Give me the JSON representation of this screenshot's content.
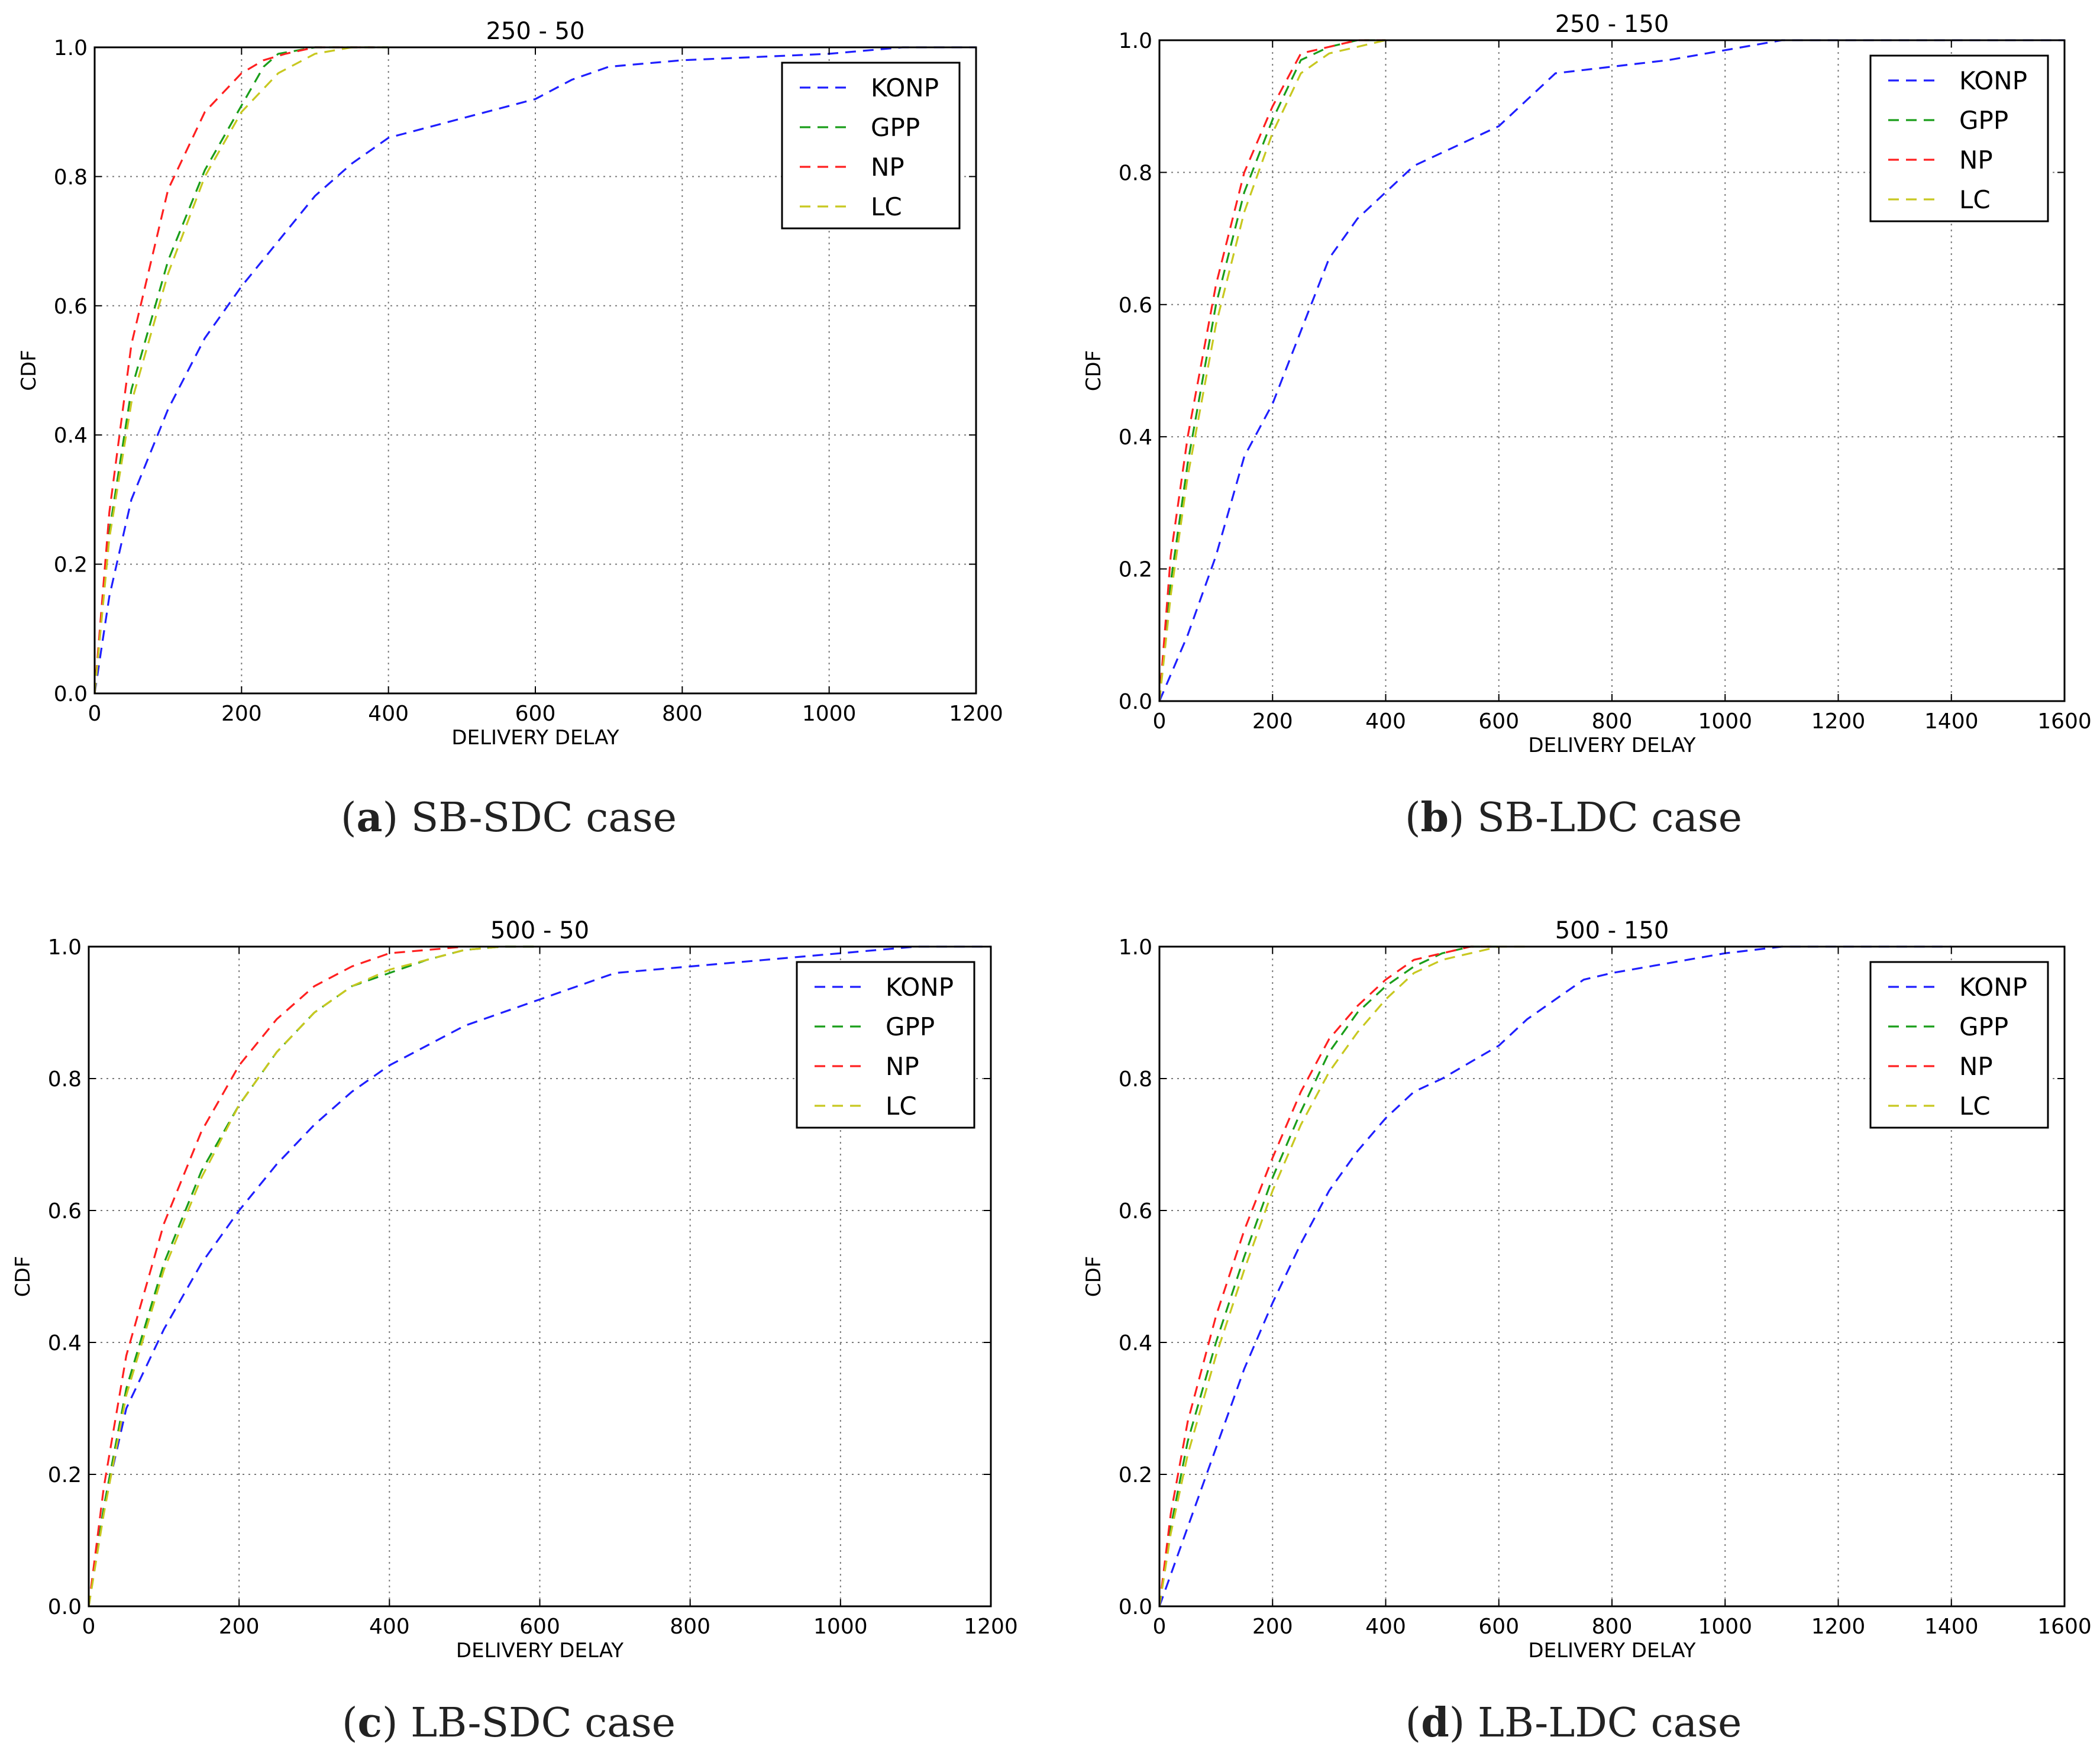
{
  "chart_data": [
    {
      "type": "line",
      "panel_label": "a",
      "caption": "SB-SDC case",
      "title": "250 - 50",
      "xlabel": "DELIVERY DELAY",
      "ylabel": "CDF",
      "xlim": [
        0,
        1200
      ],
      "ylim": [
        0,
        1.0
      ],
      "xticks": [
        0,
        200,
        400,
        600,
        800,
        1000,
        1200
      ],
      "yticks": [
        0.0,
        0.2,
        0.4,
        0.6,
        0.8,
        1.0
      ],
      "xtick_labels": [
        "0",
        "200",
        "400",
        "600",
        "800",
        "1000",
        "1200"
      ],
      "ytick_labels": [
        "0.0",
        "0.2",
        "0.4",
        "0.6",
        "0.8",
        "1.0"
      ],
      "grid": true,
      "legend_position": "top-right",
      "series": [
        {
          "name": "KONP",
          "color": "#1f1fff",
          "x": [
            0,
            20,
            50,
            100,
            150,
            200,
            250,
            300,
            350,
            400,
            500,
            600,
            650,
            700,
            800,
            900,
            1000,
            1100,
            1200
          ],
          "y": [
            0.0,
            0.15,
            0.3,
            0.44,
            0.55,
            0.63,
            0.7,
            0.77,
            0.82,
            0.86,
            0.89,
            0.92,
            0.95,
            0.97,
            0.98,
            0.985,
            0.99,
            1.0,
            1.0
          ]
        },
        {
          "name": "GPP",
          "color": "#1a9e1a",
          "x": [
            0,
            20,
            50,
            100,
            150,
            200,
            230,
            250,
            300,
            400
          ],
          "y": [
            0.0,
            0.25,
            0.47,
            0.67,
            0.81,
            0.91,
            0.97,
            0.99,
            1.0,
            1.0
          ]
        },
        {
          "name": "NP",
          "color": "#ff2020",
          "x": [
            0,
            20,
            50,
            100,
            150,
            200,
            230,
            260,
            300,
            380
          ],
          "y": [
            0.0,
            0.28,
            0.54,
            0.78,
            0.9,
            0.96,
            0.98,
            0.99,
            1.0,
            1.0
          ]
        },
        {
          "name": "LC",
          "color": "#c8c820",
          "x": [
            0,
            20,
            50,
            100,
            150,
            200,
            250,
            300,
            350,
            400
          ],
          "y": [
            0.0,
            0.24,
            0.45,
            0.65,
            0.8,
            0.9,
            0.96,
            0.99,
            1.0,
            1.0
          ]
        }
      ]
    },
    {
      "type": "line",
      "panel_label": "b",
      "caption": "SB-LDC case",
      "title": "250 - 150",
      "xlabel": "DELIVERY DELAY",
      "ylabel": "CDF",
      "xlim": [
        0,
        1600
      ],
      "ylim": [
        0,
        1.0
      ],
      "xticks": [
        0,
        200,
        400,
        600,
        800,
        1000,
        1200,
        1400,
        1600
      ],
      "yticks": [
        0.0,
        0.2,
        0.4,
        0.6,
        0.8,
        1.0
      ],
      "xtick_labels": [
        "0",
        "200",
        "400",
        "600",
        "800",
        "1000",
        "1200",
        "1400",
        "1600"
      ],
      "ytick_labels": [
        "0.0",
        "0.2",
        "0.4",
        "0.6",
        "0.8",
        "1.0"
      ],
      "grid": true,
      "legend_position": "top-right",
      "series": [
        {
          "name": "KONP",
          "color": "#1f1fff",
          "x": [
            0,
            50,
            100,
            150,
            200,
            250,
            300,
            350,
            400,
            450,
            500,
            600,
            650,
            700,
            750,
            800,
            900,
            1000,
            1100,
            1200,
            1600
          ],
          "y": [
            0.0,
            0.1,
            0.22,
            0.37,
            0.45,
            0.56,
            0.67,
            0.73,
            0.77,
            0.81,
            0.83,
            0.87,
            0.91,
            0.95,
            0.955,
            0.96,
            0.97,
            0.985,
            1.0,
            1.0,
            1.0
          ]
        },
        {
          "name": "GPP",
          "color": "#1a9e1a",
          "x": [
            0,
            20,
            50,
            100,
            150,
            200,
            250,
            300,
            350,
            400
          ],
          "y": [
            0.0,
            0.18,
            0.36,
            0.6,
            0.77,
            0.88,
            0.97,
            0.99,
            1.0,
            1.0
          ]
        },
        {
          "name": "NP",
          "color": "#ff2020",
          "x": [
            0,
            20,
            50,
            100,
            150,
            200,
            250,
            300,
            350,
            400
          ],
          "y": [
            0.0,
            0.22,
            0.4,
            0.63,
            0.8,
            0.9,
            0.98,
            0.99,
            1.0,
            1.0
          ]
        },
        {
          "name": "LC",
          "color": "#c8c820",
          "x": [
            0,
            20,
            50,
            100,
            150,
            200,
            250,
            300,
            350,
            400
          ],
          "y": [
            0.0,
            0.16,
            0.34,
            0.57,
            0.74,
            0.86,
            0.95,
            0.98,
            0.99,
            1.0
          ]
        }
      ]
    },
    {
      "type": "line",
      "panel_label": "c",
      "caption": "LB-SDC case",
      "title": "500 - 50",
      "xlabel": "DELIVERY DELAY",
      "ylabel": "CDF",
      "xlim": [
        0,
        1200
      ],
      "ylim": [
        0,
        1.0
      ],
      "xticks": [
        0,
        200,
        400,
        600,
        800,
        1000,
        1200
      ],
      "yticks": [
        0.0,
        0.2,
        0.4,
        0.6,
        0.8,
        1.0
      ],
      "xtick_labels": [
        "0",
        "200",
        "400",
        "600",
        "800",
        "1000",
        "1200"
      ],
      "ytick_labels": [
        "0.0",
        "0.2",
        "0.4",
        "0.6",
        "0.8",
        "1.0"
      ],
      "grid": true,
      "legend_position": "top-right",
      "series": [
        {
          "name": "KONP",
          "color": "#1f1fff",
          "x": [
            0,
            20,
            50,
            100,
            150,
            200,
            250,
            300,
            350,
            400,
            500,
            600,
            700,
            800,
            900,
            1000,
            1100,
            1200
          ],
          "y": [
            0.0,
            0.15,
            0.3,
            0.42,
            0.52,
            0.6,
            0.67,
            0.73,
            0.78,
            0.82,
            0.88,
            0.92,
            0.96,
            0.97,
            0.98,
            0.99,
            1.0,
            1.0
          ]
        },
        {
          "name": "GPP",
          "color": "#1a9e1a",
          "x": [
            0,
            20,
            50,
            100,
            150,
            200,
            250,
            300,
            350,
            400,
            450,
            500,
            550,
            600
          ],
          "y": [
            0.0,
            0.15,
            0.33,
            0.52,
            0.66,
            0.76,
            0.84,
            0.9,
            0.94,
            0.96,
            0.98,
            0.995,
            1.0,
            1.0
          ]
        },
        {
          "name": "NP",
          "color": "#ff2020",
          "x": [
            0,
            20,
            50,
            100,
            150,
            200,
            250,
            300,
            350,
            400,
            450,
            500
          ],
          "y": [
            0.0,
            0.18,
            0.38,
            0.58,
            0.72,
            0.82,
            0.89,
            0.94,
            0.97,
            0.99,
            0.995,
            1.0
          ]
        },
        {
          "name": "LC",
          "color": "#c8c820",
          "x": [
            0,
            20,
            50,
            100,
            150,
            200,
            250,
            300,
            350,
            400,
            450,
            500,
            550,
            600
          ],
          "y": [
            0.0,
            0.14,
            0.32,
            0.51,
            0.65,
            0.76,
            0.84,
            0.9,
            0.94,
            0.965,
            0.98,
            0.995,
            1.0,
            1.0
          ]
        }
      ]
    },
    {
      "type": "line",
      "panel_label": "d",
      "caption": "LB-LDC case",
      "title": "500 - 150",
      "xlabel": "DELIVERY DELAY",
      "ylabel": "CDF",
      "xlim": [
        0,
        1600
      ],
      "ylim": [
        0,
        1.0
      ],
      "xticks": [
        0,
        200,
        400,
        600,
        800,
        1000,
        1200,
        1400,
        1600
      ],
      "yticks": [
        0.0,
        0.2,
        0.4,
        0.6,
        0.8,
        1.0
      ],
      "xtick_labels": [
        "0",
        "200",
        "400",
        "600",
        "800",
        "1000",
        "1200",
        "1400",
        "1600"
      ],
      "ytick_labels": [
        "0.0",
        "0.2",
        "0.4",
        "0.6",
        "0.8",
        "1.0"
      ],
      "grid": true,
      "legend_position": "top-right",
      "series": [
        {
          "name": "KONP",
          "color": "#1f1fff",
          "x": [
            0,
            50,
            100,
            150,
            200,
            250,
            300,
            350,
            400,
            450,
            500,
            600,
            650,
            700,
            750,
            800,
            900,
            1000,
            1100,
            1200,
            1400
          ],
          "y": [
            0.0,
            0.12,
            0.24,
            0.36,
            0.46,
            0.55,
            0.63,
            0.69,
            0.74,
            0.78,
            0.8,
            0.85,
            0.89,
            0.92,
            0.95,
            0.96,
            0.975,
            0.99,
            1.0,
            1.0,
            1.0
          ]
        },
        {
          "name": "GPP",
          "color": "#1a9e1a",
          "x": [
            0,
            20,
            50,
            100,
            150,
            200,
            250,
            300,
            350,
            400,
            450,
            500,
            550,
            600
          ],
          "y": [
            0.0,
            0.12,
            0.25,
            0.4,
            0.53,
            0.65,
            0.75,
            0.84,
            0.9,
            0.94,
            0.97,
            0.99,
            1.0,
            1.0
          ]
        },
        {
          "name": "NP",
          "color": "#ff2020",
          "x": [
            0,
            20,
            50,
            100,
            150,
            200,
            250,
            300,
            350,
            400,
            450,
            500,
            550,
            600
          ],
          "y": [
            0.0,
            0.14,
            0.28,
            0.44,
            0.57,
            0.68,
            0.78,
            0.86,
            0.91,
            0.95,
            0.98,
            0.99,
            1.0,
            1.0
          ]
        },
        {
          "name": "LC",
          "color": "#c8c820",
          "x": [
            0,
            20,
            50,
            100,
            150,
            200,
            250,
            300,
            350,
            400,
            450,
            500,
            550,
            600,
            650
          ],
          "y": [
            0.0,
            0.11,
            0.23,
            0.38,
            0.51,
            0.63,
            0.73,
            0.81,
            0.87,
            0.92,
            0.96,
            0.98,
            0.99,
            1.0,
            1.0
          ]
        }
      ]
    }
  ]
}
